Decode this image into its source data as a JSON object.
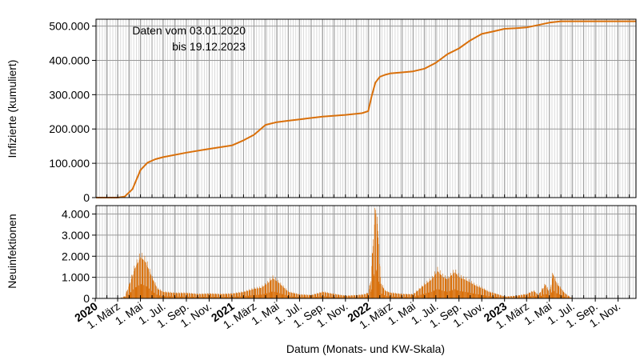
{
  "colors": {
    "series": "#d9700b",
    "grid_minor": "#d2d2d2",
    "grid_major": "#9a9a9a",
    "axis": "#000000"
  },
  "annotation": {
    "line1": "Daten vom 03.01.2020",
    "line2": "bis 19.12.2023"
  },
  "xlabel": "Datum (Monats- und KW-Skala)",
  "x_ticks": [
    {
      "label": "2020",
      "date": "2020-01-01",
      "bold": true
    },
    {
      "label": "1. März",
      "date": "2020-03-01",
      "bold": false
    },
    {
      "label": "1. Mai",
      "date": "2020-05-01",
      "bold": false
    },
    {
      "label": "1. Jul.",
      "date": "2020-07-01",
      "bold": false
    },
    {
      "label": "1. Sep.",
      "date": "2020-09-01",
      "bold": false
    },
    {
      "label": "1. Nov.",
      "date": "2020-11-01",
      "bold": false
    },
    {
      "label": "2021",
      "date": "2021-01-01",
      "bold": true
    },
    {
      "label": "1. März",
      "date": "2021-03-01",
      "bold": false
    },
    {
      "label": "1. Mai",
      "date": "2021-05-01",
      "bold": false
    },
    {
      "label": "1. Jul.",
      "date": "2021-07-01",
      "bold": false
    },
    {
      "label": "1. Sep.",
      "date": "2021-09-01",
      "bold": false
    },
    {
      "label": "1. Nov.",
      "date": "2021-11-01",
      "bold": false
    },
    {
      "label": "2022",
      "date": "2022-01-01",
      "bold": true
    },
    {
      "label": "1. März",
      "date": "2022-03-01",
      "bold": false
    },
    {
      "label": "1. Mai",
      "date": "2022-05-01",
      "bold": false
    },
    {
      "label": "1. Jul.",
      "date": "2022-07-01",
      "bold": false
    },
    {
      "label": "1. Sep.",
      "date": "2022-09-01",
      "bold": false
    },
    {
      "label": "1. Nov.",
      "date": "2022-11-01",
      "bold": false
    },
    {
      "label": "2023",
      "date": "2023-01-01",
      "bold": true
    },
    {
      "label": "1. März",
      "date": "2023-03-01",
      "bold": false
    },
    {
      "label": "1. Mai",
      "date": "2023-05-01",
      "bold": false
    },
    {
      "label": "1. Jul.",
      "date": "2023-07-01",
      "bold": false
    },
    {
      "label": "1. Sep.",
      "date": "2023-09-01",
      "bold": false
    },
    {
      "label": "1. Nov.",
      "date": "2023-11-01",
      "bold": false
    }
  ],
  "chart_data": [
    {
      "type": "line",
      "ylabel": "Infizierte (kumuliert)",
      "ylim": [
        0,
        520000
      ],
      "yticks": [
        {
          "value": 0,
          "label": "0"
        },
        {
          "value": 100000,
          "label": "100.000"
        },
        {
          "value": 200000,
          "label": "200.000"
        },
        {
          "value": 300000,
          "label": "300.000"
        },
        {
          "value": 400000,
          "label": "400.000"
        },
        {
          "value": 500000,
          "label": "500.000"
        }
      ],
      "xlim": [
        "2020-01-03",
        "2023-12-19"
      ],
      "grid": true,
      "series": [
        {
          "x": [
            "2020-01-03",
            "2020-03-01",
            "2020-03-20",
            "2020-04-10",
            "2020-05-01",
            "2020-05-20",
            "2020-06-10",
            "2020-07-01",
            "2020-09-01",
            "2020-11-01",
            "2021-01-01",
            "2021-02-01",
            "2021-03-01",
            "2021-04-01",
            "2021-05-01",
            "2021-06-01",
            "2021-07-01",
            "2021-09-01",
            "2021-11-01",
            "2021-12-15",
            "2022-01-01",
            "2022-01-10",
            "2022-01-20",
            "2022-02-01",
            "2022-02-15",
            "2022-03-01",
            "2022-04-01",
            "2022-05-01",
            "2022-06-01",
            "2022-07-01",
            "2022-08-01",
            "2022-09-01",
            "2022-10-01",
            "2022-11-01",
            "2022-12-01",
            "2023-01-01",
            "2023-02-01",
            "2023-03-01",
            "2023-04-01",
            "2023-05-01",
            "2023-06-01",
            "2023-07-01",
            "2023-09-01",
            "2023-11-01",
            "2023-12-19"
          ],
          "values": [
            0,
            0,
            3000,
            25000,
            80000,
            102000,
            112000,
            118000,
            131000,
            142000,
            152000,
            167000,
            183000,
            212000,
            220000,
            224000,
            228000,
            236000,
            241000,
            246000,
            252000,
            295000,
            335000,
            352000,
            358000,
            362000,
            365000,
            368000,
            376000,
            393000,
            418000,
            435000,
            458000,
            477000,
            484000,
            492000,
            494000,
            496000,
            503000,
            510000,
            514000,
            514000,
            514000,
            514000,
            514000
          ]
        }
      ]
    },
    {
      "type": "bar",
      "ylabel": "Neuinfektionen",
      "ylim": [
        0,
        4400
      ],
      "yticks": [
        {
          "value": 0,
          "label": "0"
        },
        {
          "value": 1000,
          "label": "1.000"
        },
        {
          "value": 2000,
          "label": "2.000"
        },
        {
          "value": 3000,
          "label": "3.000"
        },
        {
          "value": 4000,
          "label": "4.000"
        }
      ],
      "xlim": [
        "2020-01-03",
        "2023-12-19"
      ],
      "grid": true,
      "series": [
        {
          "x": [
            "2020-01-03",
            "2020-03-05",
            "2020-03-20",
            "2020-04-01",
            "2020-04-15",
            "2020-05-01",
            "2020-05-15",
            "2020-06-01",
            "2020-06-15",
            "2020-07-01",
            "2020-08-01",
            "2020-09-01",
            "2020-10-01",
            "2020-11-01",
            "2020-12-01",
            "2021-01-01",
            "2021-02-01",
            "2021-03-01",
            "2021-03-20",
            "2021-04-05",
            "2021-04-20",
            "2021-05-05",
            "2021-06-01",
            "2021-07-01",
            "2021-08-01",
            "2021-09-01",
            "2021-10-01",
            "2021-11-01",
            "2021-12-01",
            "2021-12-20",
            "2022-01-01",
            "2022-01-08",
            "2022-01-14",
            "2022-01-20",
            "2022-01-26",
            "2022-02-03",
            "2022-02-15",
            "2022-03-01",
            "2022-04-01",
            "2022-05-01",
            "2022-06-01",
            "2022-06-20",
            "2022-07-05",
            "2022-07-20",
            "2022-08-01",
            "2022-08-20",
            "2022-09-01",
            "2022-09-15",
            "2022-10-01",
            "2022-10-15",
            "2022-11-01",
            "2022-11-20",
            "2022-12-01",
            "2022-12-15",
            "2023-01-01",
            "2023-02-01",
            "2023-03-01",
            "2023-03-20",
            "2023-04-01",
            "2023-04-20",
            "2023-05-01",
            "2023-05-10",
            "2023-05-20",
            "2023-06-01",
            "2023-06-10",
            "2023-06-20",
            "2023-07-01",
            "2023-12-19"
          ],
          "values": [
            0,
            0,
            100,
            650,
            1400,
            1950,
            1700,
            950,
            450,
            300,
            250,
            250,
            200,
            220,
            200,
            220,
            300,
            450,
            500,
            700,
            950,
            750,
            300,
            180,
            150,
            300,
            200,
            120,
            150,
            180,
            260,
            900,
            2800,
            4200,
            3200,
            700,
            350,
            260,
            200,
            190,
            650,
            900,
            1300,
            1000,
            900,
            1250,
            1000,
            900,
            750,
            600,
            480,
            300,
            250,
            180,
            80,
            120,
            200,
            350,
            150,
            650,
            250,
            1150,
            700,
            450,
            250,
            120,
            0,
            0
          ]
        }
      ]
    }
  ]
}
